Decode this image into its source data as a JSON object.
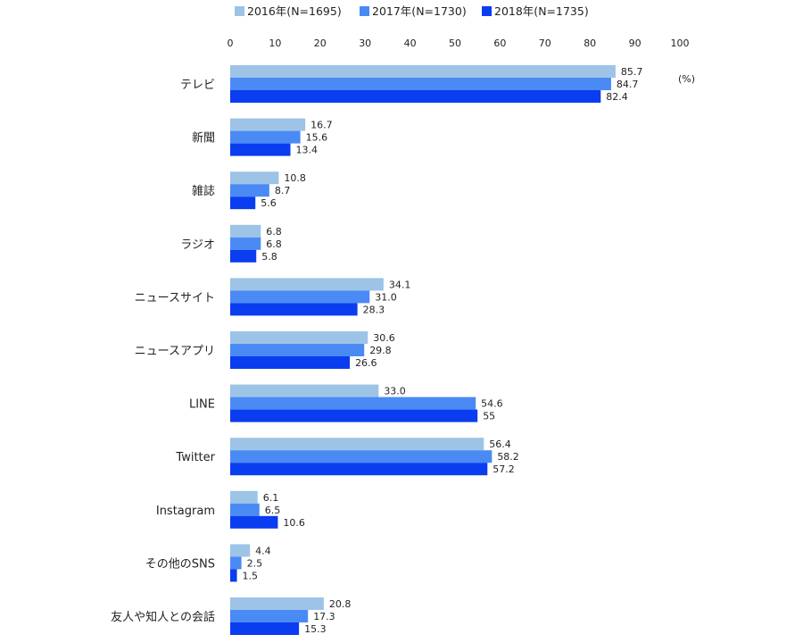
{
  "chart_data": {
    "type": "bar",
    "orientation": "horizontal",
    "unit": "(%)",
    "xlim": [
      0,
      100
    ],
    "ticks": [
      "0",
      "10",
      "20",
      "30",
      "40",
      "50",
      "60",
      "70",
      "80",
      "90",
      "100"
    ],
    "tick_values": [
      0,
      10,
      20,
      30,
      40,
      50,
      60,
      70,
      80,
      90,
      100
    ],
    "legend_position": "top",
    "grid": false,
    "categories": [
      "テレビ",
      "新聞",
      "雑誌",
      "ラジオ",
      "ニュースサイト",
      "ニュースアプリ",
      "LINE",
      "Twitter",
      "Instagram",
      "その他のSNS",
      "友人や知人との会話"
    ],
    "series": [
      {
        "name": "2016年(N=1695)",
        "color": "#9dc3e6",
        "values": [
          85.7,
          16.7,
          10.8,
          6.8,
          34.1,
          30.6,
          33.0,
          56.4,
          6.1,
          4.4,
          20.8
        ],
        "labels": [
          "85.7",
          "16.7",
          "10.8",
          "6.8",
          "34.1",
          "30.6",
          "33.0",
          "56.4",
          "6.1",
          "4.4",
          "20.8"
        ]
      },
      {
        "name": "2017年(N=1730)",
        "color": "#4a8af4",
        "values": [
          84.7,
          15.6,
          8.7,
          6.8,
          31.0,
          29.8,
          54.6,
          58.2,
          6.5,
          2.5,
          17.3
        ],
        "labels": [
          "84.7",
          "15.6",
          "8.7",
          "6.8",
          "31.0",
          "29.8",
          "54.6",
          "58.2",
          "6.5",
          "2.5",
          "17.3"
        ]
      },
      {
        "name": "2018年(N=1735)",
        "color": "#0a3cf0",
        "values": [
          82.4,
          13.4,
          5.6,
          5.8,
          28.3,
          26.6,
          55,
          57.2,
          10.6,
          1.5,
          15.3
        ],
        "labels": [
          "82.4",
          "13.4",
          "5.6",
          "5.8",
          "28.3",
          "26.6",
          "55",
          "57.2",
          "10.6",
          "1.5",
          "15.3"
        ]
      }
    ]
  }
}
